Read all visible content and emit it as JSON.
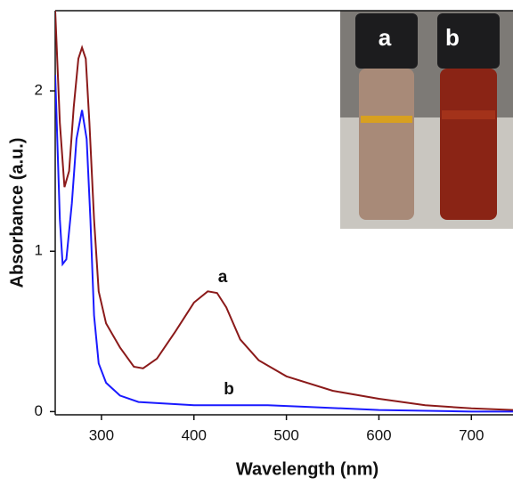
{
  "chart_data": {
    "type": "line",
    "x_label": "Wavelength (nm)",
    "y_label": "Absorbance (a.u.)",
    "xlim": [
      250,
      745
    ],
    "ylim": [
      -0.02,
      2.5
    ],
    "xticks": [
      300,
      400,
      500,
      600,
      700
    ],
    "yticks": [
      0,
      1,
      2
    ],
    "inset_labels": [
      "a",
      "b"
    ],
    "series": [
      {
        "name": "a",
        "color": "#8b1a1a",
        "x": [
          250,
          255,
          260,
          265,
          270,
          275,
          279,
          283,
          287,
          292,
          297,
          305,
          320,
          335,
          345,
          360,
          380,
          400,
          415,
          425,
          435,
          450,
          470,
          500,
          550,
          600,
          650,
          700,
          745
        ],
        "values": [
          2.5,
          1.8,
          1.4,
          1.5,
          1.9,
          2.2,
          2.27,
          2.2,
          1.8,
          1.2,
          0.75,
          0.55,
          0.4,
          0.28,
          0.27,
          0.33,
          0.5,
          0.68,
          0.75,
          0.74,
          0.65,
          0.45,
          0.32,
          0.22,
          0.13,
          0.08,
          0.04,
          0.02,
          0.01
        ]
      },
      {
        "name": "b",
        "color": "#1a1aff",
        "x": [
          250,
          255,
          258,
          262,
          268,
          273,
          279,
          284,
          288,
          292,
          297,
          305,
          320,
          340,
          400,
          480,
          520,
          600,
          700,
          745
        ],
        "values": [
          2.1,
          1.2,
          0.92,
          0.95,
          1.3,
          1.7,
          1.88,
          1.7,
          1.2,
          0.6,
          0.3,
          0.18,
          0.1,
          0.06,
          0.04,
          0.04,
          0.03,
          0.01,
          0.0,
          0.0
        ]
      }
    ]
  }
}
